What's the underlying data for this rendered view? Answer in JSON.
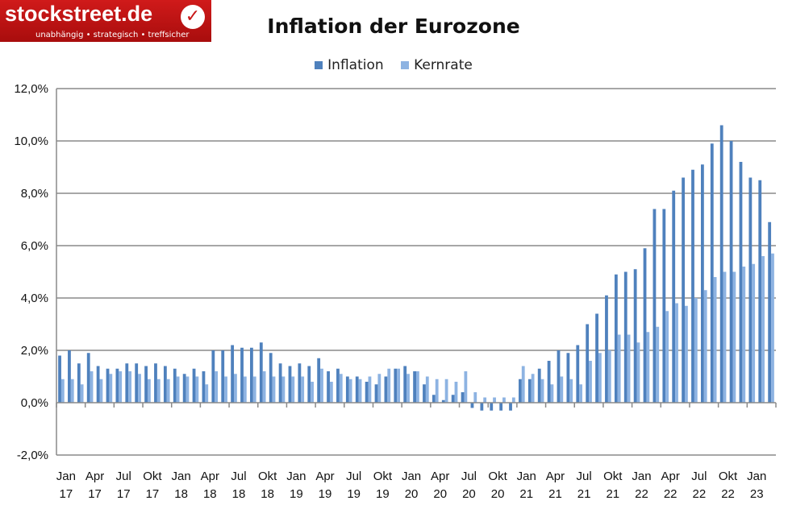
{
  "logo": {
    "name": "stockstreet.de",
    "tagline": "unabhängig • strategisch • treffsicher"
  },
  "chart_data": {
    "type": "bar",
    "title": "Inflation der Eurozone",
    "legend_position": "top",
    "grid": true,
    "ylim": [
      -2,
      12
    ],
    "yticks": [
      "-2,0%",
      "0,0%",
      "2,0%",
      "4,0%",
      "6,0%",
      "8,0%",
      "10,0%",
      "12,0%"
    ],
    "xtick_labels": [
      [
        "Jan",
        "17"
      ],
      [
        "Apr",
        "17"
      ],
      [
        "Jul",
        "17"
      ],
      [
        "Okt",
        "17"
      ],
      [
        "Jan",
        "18"
      ],
      [
        "Apr",
        "18"
      ],
      [
        "Jul",
        "18"
      ],
      [
        "Okt",
        "18"
      ],
      [
        "Jan",
        "19"
      ],
      [
        "Apr",
        "19"
      ],
      [
        "Jul",
        "19"
      ],
      [
        "Okt",
        "19"
      ],
      [
        "Jan",
        "20"
      ],
      [
        "Apr",
        "20"
      ],
      [
        "Jul",
        "20"
      ],
      [
        "Okt",
        "20"
      ],
      [
        "Jan",
        "21"
      ],
      [
        "Apr",
        "21"
      ],
      [
        "Jul",
        "21"
      ],
      [
        "Okt",
        "21"
      ],
      [
        "Jan",
        "22"
      ],
      [
        "Apr",
        "22"
      ],
      [
        "Jul",
        "22"
      ],
      [
        "Okt",
        "22"
      ],
      [
        "Jan",
        "23"
      ]
    ],
    "series": [
      {
        "name": "Inflation",
        "color": "#4f81bd",
        "values": [
          1.8,
          2.0,
          1.5,
          1.9,
          1.4,
          1.3,
          1.3,
          1.5,
          1.5,
          1.4,
          1.5,
          1.4,
          1.3,
          1.1,
          1.3,
          1.2,
          2.0,
          2.0,
          2.2,
          2.1,
          2.1,
          2.3,
          1.9,
          1.5,
          1.4,
          1.5,
          1.4,
          1.7,
          1.2,
          1.3,
          1.0,
          1.0,
          0.8,
          0.7,
          1.0,
          1.3,
          1.4,
          1.2,
          0.7,
          0.3,
          0.1,
          0.3,
          0.4,
          -0.2,
          -0.3,
          -0.3,
          -0.3,
          -0.3,
          0.9,
          0.9,
          1.3,
          1.6,
          2.0,
          1.9,
          2.2,
          3.0,
          3.4,
          4.1,
          4.9,
          5.0,
          5.1,
          5.9,
          7.4,
          7.4,
          8.1,
          8.6,
          8.9,
          9.1,
          9.9,
          10.6,
          10.0,
          9.2,
          8.6,
          8.5,
          6.9
        ]
      },
      {
        "name": "Kernrate",
        "color": "#8db3e2",
        "values": [
          0.9,
          0.9,
          0.7,
          1.2,
          0.9,
          1.1,
          1.2,
          1.2,
          1.1,
          0.9,
          0.9,
          0.9,
          1.0,
          1.0,
          1.0,
          0.7,
          1.2,
          1.0,
          1.1,
          1.0,
          1.0,
          1.2,
          1.0,
          1.0,
          1.0,
          1.0,
          0.8,
          1.3,
          0.8,
          1.1,
          0.9,
          0.9,
          1.0,
          1.1,
          1.3,
          1.3,
          1.1,
          1.2,
          1.0,
          0.9,
          0.9,
          0.8,
          1.2,
          0.4,
          0.2,
          0.2,
          0.2,
          0.2,
          1.4,
          1.1,
          0.9,
          0.7,
          1.0,
          0.9,
          0.7,
          1.6,
          1.9,
          2.0,
          2.6,
          2.6,
          2.3,
          2.7,
          2.9,
          3.5,
          3.8,
          3.7,
          4.0,
          4.3,
          4.8,
          5.0,
          5.0,
          5.2,
          5.3,
          5.6,
          5.7
        ]
      }
    ]
  }
}
